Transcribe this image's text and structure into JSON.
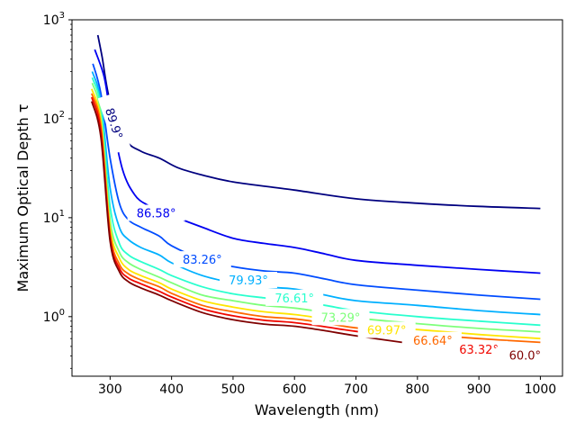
{
  "chart_data": {
    "type": "line",
    "title": "",
    "xlabel": "Wavelength (nm)",
    "ylabel": "Maximum Optical Depth τ",
    "xlim": [
      238,
      1036
    ],
    "ylim": [
      0.25,
      1000
    ],
    "yscale": "log",
    "x_ticks": [
      300,
      400,
      500,
      600,
      700,
      800,
      900,
      1000
    ],
    "x_tick_labels": [
      "300",
      "400",
      "500",
      "600",
      "700",
      "800",
      "900",
      "1000"
    ],
    "y_ticks": [
      {
        "value": 1,
        "base": "10",
        "exp": "0"
      },
      {
        "value": 10,
        "base": "10",
        "exp": "1"
      },
      {
        "value": 100,
        "base": "10",
        "exp": "2"
      },
      {
        "value": 1000,
        "base": "10",
        "exp": "3"
      }
    ],
    "series": [
      {
        "name": "89.9°",
        "label": "89.9°",
        "color": "#00007f",
        "x": [
          280,
          287,
          300,
          325,
          350,
          380,
          410,
          450,
          500,
          600,
          700,
          800,
          900,
          1000
        ],
        "y": [
          700,
          420,
          150,
          62,
          47,
          40,
          32,
          27,
          23,
          19,
          15.5,
          14,
          13,
          12.4
        ],
        "label_x": 307,
        "label_y": 90,
        "label_angle": 72
      },
      {
        "name": "86.58°",
        "label": "86.58°",
        "color": "#0000f1",
        "x": [
          275,
          290,
          300,
          320,
          340,
          360,
          380,
          400,
          450,
          500,
          550,
          600,
          650,
          700,
          800,
          900,
          1000
        ],
        "y": [
          500,
          270,
          120,
          31,
          17,
          13.5,
          12,
          10.5,
          8,
          6.2,
          5.5,
          5,
          4.3,
          3.7,
          3.3,
          3.0,
          2.75
        ],
        "label_x": 375,
        "label_y": 11.2,
        "label_angle": 0
      },
      {
        "name": "83.26°",
        "label": "83.26°",
        "color": "#004cff",
        "x": [
          272,
          285,
          300,
          315,
          330,
          350,
          380,
          400,
          450,
          500,
          550,
          600,
          650,
          700,
          800,
          900,
          1000
        ],
        "y": [
          360,
          180,
          40,
          14,
          9.5,
          8,
          6.5,
          5.2,
          3.8,
          3.2,
          2.9,
          2.75,
          2.4,
          2.1,
          1.85,
          1.65,
          1.5
        ],
        "label_x": 450,
        "label_y": 3.8,
        "label_angle": 0
      },
      {
        "name": "79.93°",
        "label": "79.93°",
        "color": "#00b0ff",
        "x": [
          271,
          285,
          300,
          315,
          330,
          350,
          380,
          400,
          450,
          500,
          550,
          600,
          650,
          700,
          800,
          900,
          1000
        ],
        "y": [
          300,
          150,
          20,
          8,
          6,
          5.0,
          4.2,
          3.5,
          2.6,
          2.2,
          2.0,
          1.9,
          1.65,
          1.45,
          1.3,
          1.15,
          1.05
        ],
        "label_x": 525,
        "label_y": 2.35,
        "label_angle": 0
      },
      {
        "name": "76.61°",
        "label": "76.61°",
        "color": "#29ffce",
        "x": [
          271,
          285,
          300,
          315,
          330,
          350,
          380,
          400,
          450,
          500,
          550,
          600,
          650,
          700,
          800,
          900,
          1000
        ],
        "y": [
          260,
          130,
          13,
          5.5,
          4.2,
          3.6,
          3.0,
          2.6,
          2.0,
          1.7,
          1.55,
          1.45,
          1.3,
          1.15,
          1.0,
          0.9,
          0.82
        ],
        "label_x": 600,
        "label_y": 1.55,
        "label_angle": 0
      },
      {
        "name": "73.29°",
        "label": "73.29°",
        "color": "#7dff7a",
        "x": [
          271,
          285,
          300,
          315,
          330,
          350,
          380,
          400,
          450,
          500,
          550,
          600,
          650,
          700,
          800,
          900,
          1000
        ],
        "y": [
          230,
          110,
          9.5,
          4.5,
          3.5,
          3.0,
          2.5,
          2.2,
          1.65,
          1.45,
          1.3,
          1.22,
          1.1,
          0.97,
          0.85,
          0.76,
          0.7
        ],
        "label_x": 675,
        "label_y": 0.99,
        "label_angle": 0
      },
      {
        "name": "69.97°",
        "label": "69.97°",
        "color": "#ffe500",
        "x": [
          270,
          285,
          300,
          315,
          330,
          350,
          380,
          400,
          450,
          500,
          550,
          600,
          650,
          700,
          800,
          900,
          1000
        ],
        "y": [
          200,
          95,
          8,
          3.9,
          3.0,
          2.6,
          2.2,
          1.9,
          1.45,
          1.25,
          1.12,
          1.05,
          0.95,
          0.85,
          0.74,
          0.66,
          0.6
        ],
        "label_x": 750,
        "label_y": 0.735,
        "label_angle": 0
      },
      {
        "name": "66.64°",
        "label": "66.64°",
        "color": "#ff6800",
        "x": [
          270,
          285,
          300,
          315,
          330,
          350,
          380,
          400,
          450,
          500,
          550,
          600,
          650,
          700,
          800,
          900,
          1000
        ],
        "y": [
          180,
          85,
          7,
          3.4,
          2.7,
          2.35,
          2.0,
          1.72,
          1.3,
          1.12,
          1.0,
          0.95,
          0.86,
          0.77,
          0.67,
          0.6,
          0.55
        ],
        "label_x": 825,
        "label_y": 0.58,
        "label_angle": 0
      },
      {
        "name": "63.32°",
        "label": "63.32°",
        "color": "#f10700",
        "x": [
          270,
          285,
          300,
          315,
          330,
          350,
          380,
          400,
          450,
          500,
          550,
          600,
          650,
          700,
          800
        ],
        "y": [
          165,
          75,
          6.3,
          3.1,
          2.45,
          2.15,
          1.8,
          1.58,
          1.2,
          1.02,
          0.92,
          0.87,
          0.79,
          0.71,
          0.6
        ],
        "label_x": 900,
        "label_y": 0.47,
        "label_angle": 0
      },
      {
        "name": "60.0°",
        "label": "60.0°",
        "color": "#7f0000",
        "x": [
          270,
          285,
          300,
          315,
          330,
          350,
          380,
          400,
          450,
          500,
          550,
          600,
          650,
          700,
          775
        ],
        "y": [
          150,
          65,
          5.8,
          2.85,
          2.25,
          1.95,
          1.65,
          1.45,
          1.1,
          0.93,
          0.84,
          0.8,
          0.72,
          0.64,
          0.55
        ],
        "label_x": 975,
        "label_y": 0.41,
        "label_angle": 0
      }
    ]
  }
}
